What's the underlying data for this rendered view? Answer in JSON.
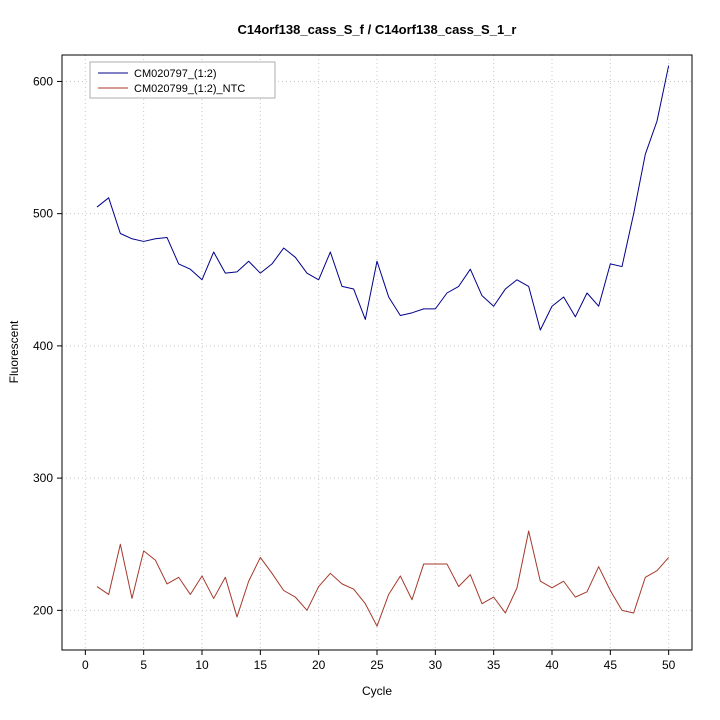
{
  "chart_data": {
    "type": "line",
    "title": "C14orf138_cass_S_f / C14orf138_cass_S_1_r",
    "xlabel": "Cycle",
    "ylabel": "Fluorescent",
    "xlim": [
      -2,
      52
    ],
    "ylim": [
      170,
      620
    ],
    "xticks": [
      0,
      5,
      10,
      15,
      20,
      25,
      30,
      35,
      40,
      45,
      50
    ],
    "yticks": [
      200,
      300,
      400,
      500,
      600
    ],
    "grid": "dotted",
    "legend_position": "top-left",
    "x": [
      1,
      2,
      3,
      4,
      5,
      6,
      7,
      8,
      9,
      10,
      11,
      12,
      13,
      14,
      15,
      16,
      17,
      18,
      19,
      20,
      21,
      22,
      23,
      24,
      25,
      26,
      27,
      28,
      29,
      30,
      31,
      32,
      33,
      34,
      35,
      36,
      37,
      38,
      39,
      40,
      41,
      42,
      43,
      44,
      45,
      46,
      47,
      48,
      49,
      50
    ],
    "series": [
      {
        "name": "CM020797_(1:2)",
        "color": "#00008B",
        "values": [
          505,
          512,
          485,
          481,
          479,
          481,
          482,
          462,
          458,
          450,
          471,
          455,
          456,
          464,
          455,
          462,
          474,
          467,
          455,
          450,
          471,
          445,
          443,
          420,
          464,
          437,
          423,
          425,
          428,
          428,
          440,
          445,
          458,
          438,
          430,
          443,
          450,
          445,
          412,
          430,
          437,
          422,
          440,
          430,
          462,
          460,
          500,
          545,
          570,
          612
        ]
      },
      {
        "name": "CM020799_(1:2)_NTC",
        "color": "#A5392B",
        "values": [
          218,
          212,
          250,
          209,
          245,
          238,
          220,
          225,
          212,
          226,
          209,
          225,
          195,
          222,
          240,
          228,
          215,
          210,
          200,
          218,
          228,
          220,
          216,
          205,
          188,
          212,
          226,
          208,
          235,
          235,
          235,
          218,
          227,
          205,
          210,
          198,
          217,
          260,
          222,
          217,
          222,
          210,
          214,
          233,
          215,
          200,
          198,
          225,
          230,
          240
        ]
      }
    ]
  }
}
